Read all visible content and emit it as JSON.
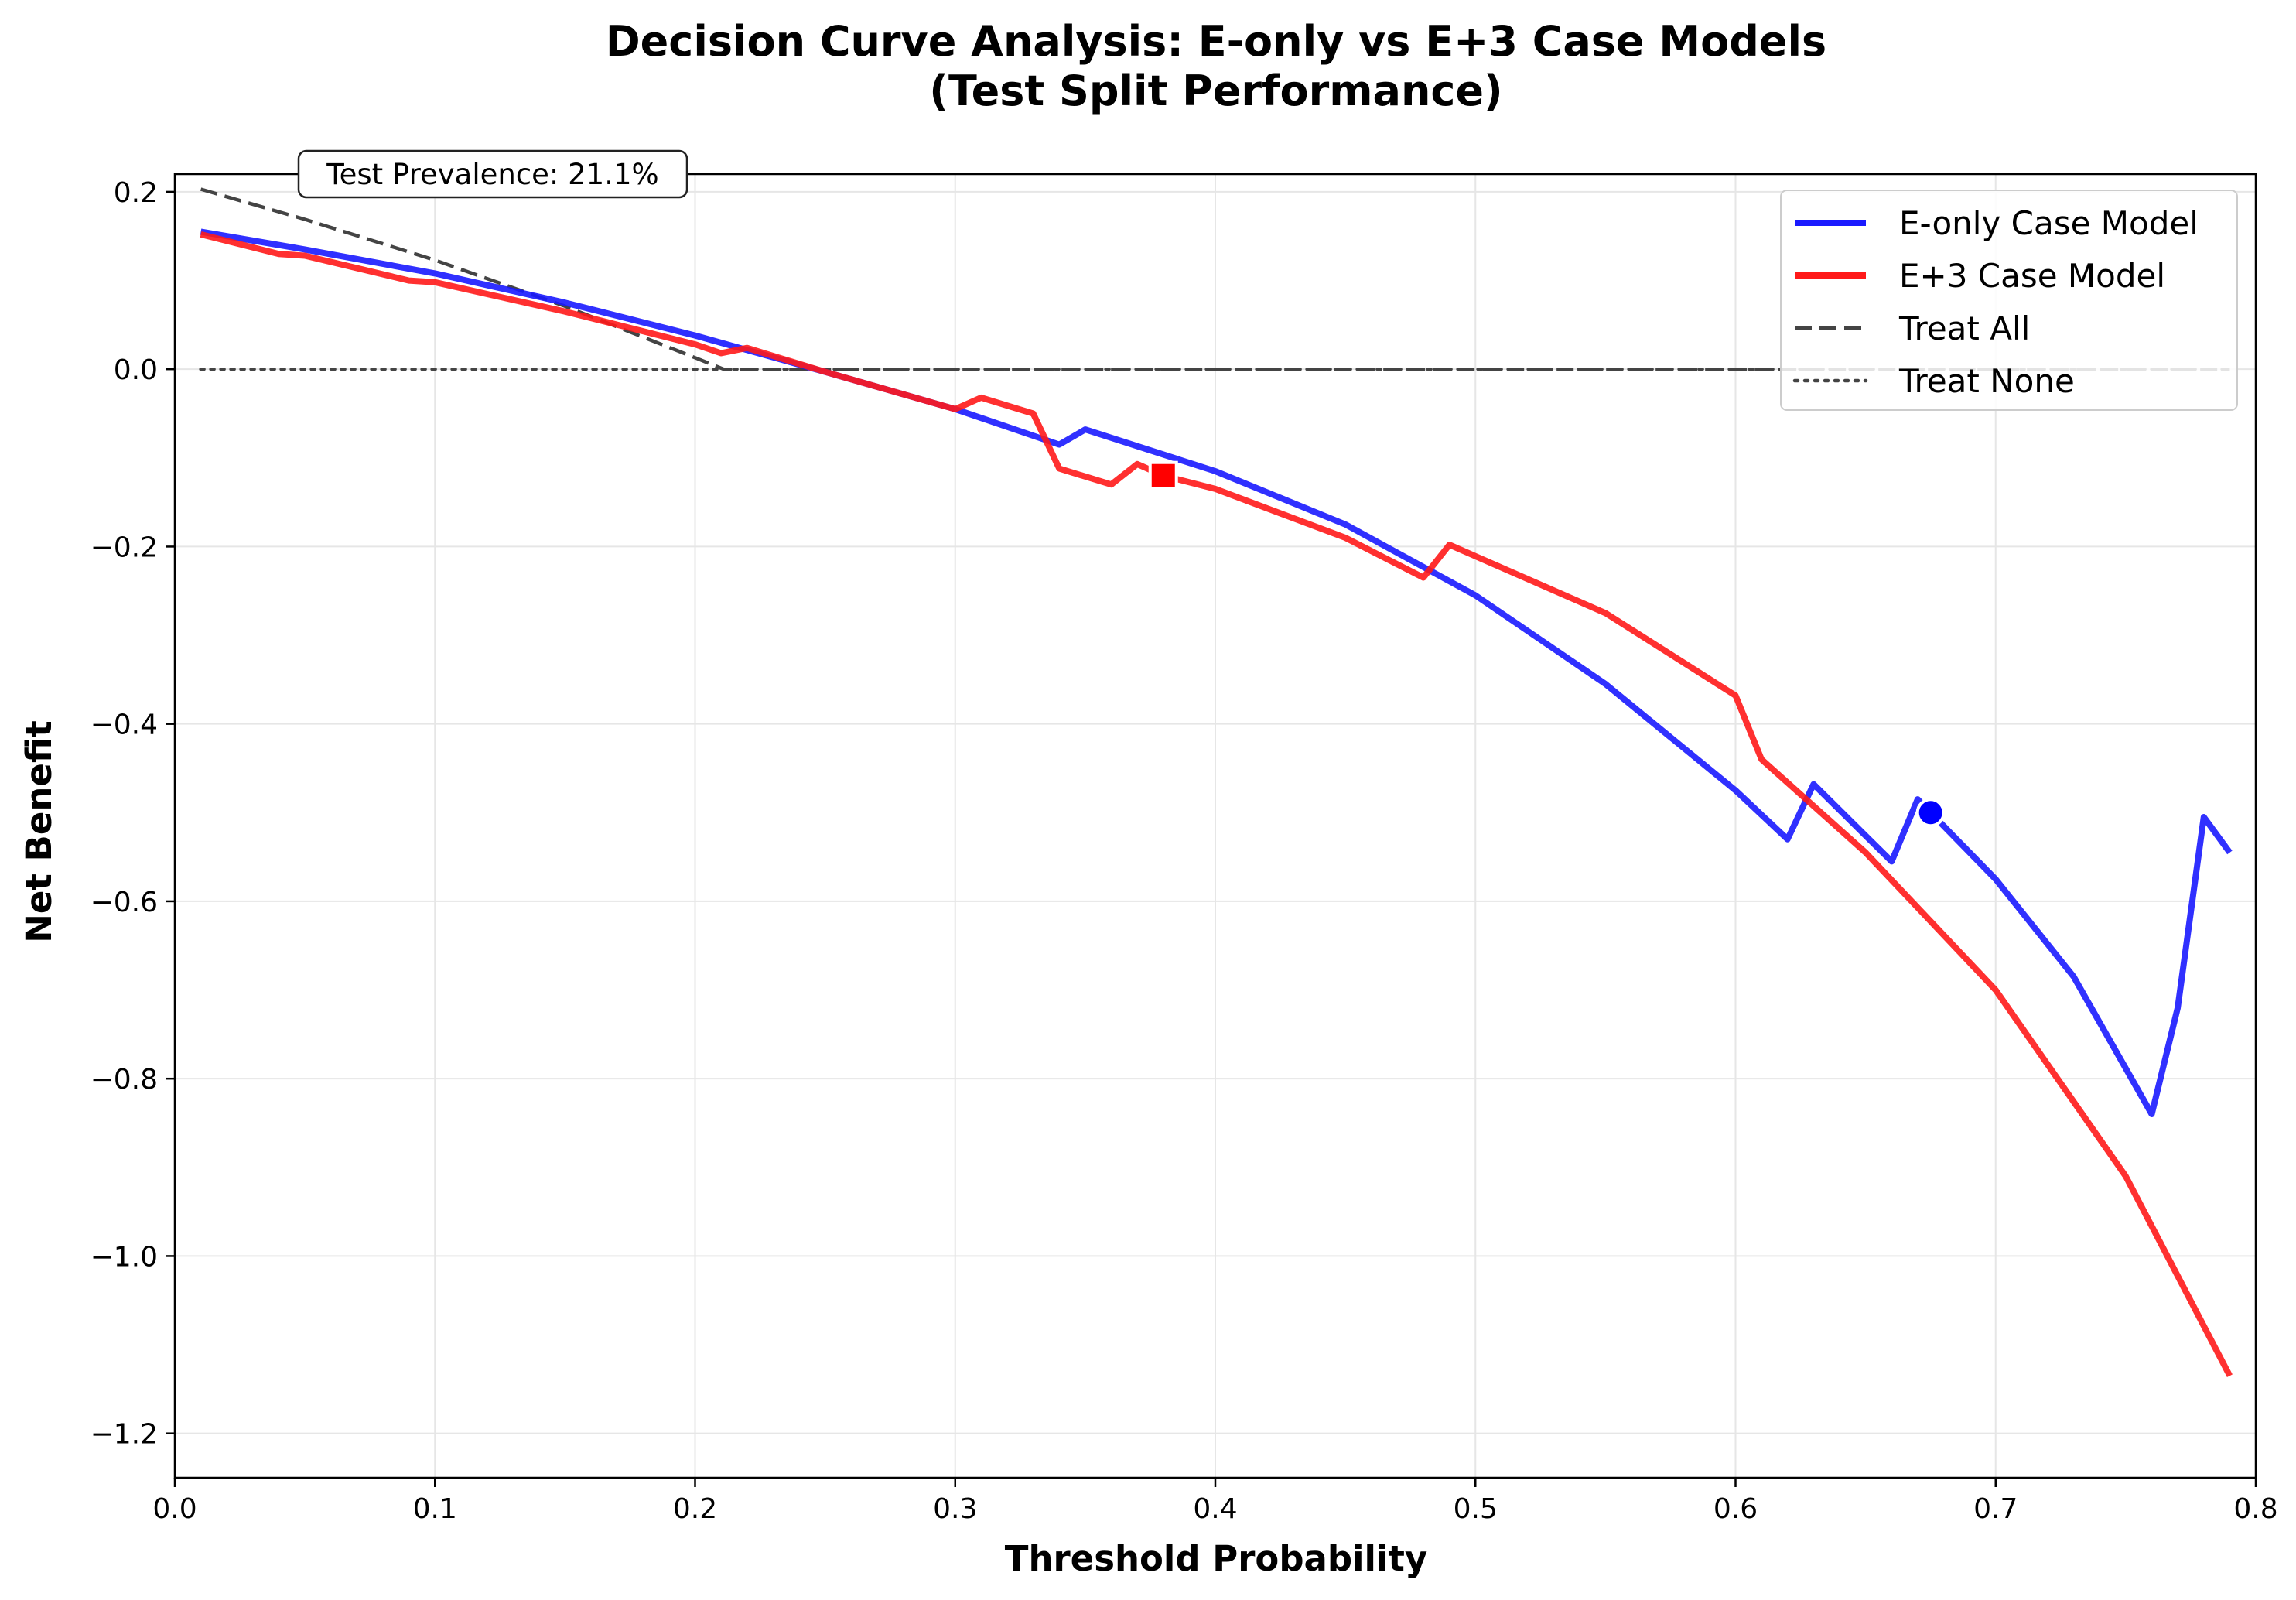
{
  "chart_data": {
    "type": "line",
    "title": "Decision Curve Analysis: E-only vs E+3 Case Models",
    "subtitle": "(Test Split Performance)",
    "xlabel": "Threshold Probability",
    "ylabel": "Net Benefit",
    "xlim": [
      0.0,
      0.8
    ],
    "ylim": [
      -1.25,
      0.22
    ],
    "xticks": [
      0.0,
      0.1,
      0.2,
      0.3,
      0.4,
      0.5,
      0.6,
      0.7,
      0.8
    ],
    "xtick_labels": [
      "0.0",
      "0.1",
      "0.2",
      "0.3",
      "0.4",
      "0.5",
      "0.6",
      "0.7",
      "0.8"
    ],
    "yticks": [
      0.2,
      0.0,
      -0.2,
      -0.4,
      -0.6,
      -0.8,
      -1.0,
      -1.2
    ],
    "ytick_labels": [
      "0.2",
      "0.0",
      "−0.2",
      "−0.4",
      "−0.6",
      "−0.8",
      "−1.0",
      "−1.2"
    ],
    "grid": true,
    "legend_position": "top-right",
    "annotation": "Test Prevalence: 21.1%",
    "series": [
      {
        "name": "E-only Case Model",
        "color": "#1a1aff",
        "style": "solid",
        "x": [
          0.01,
          0.05,
          0.1,
          0.15,
          0.2,
          0.25,
          0.3,
          0.34,
          0.35,
          0.4,
          0.45,
          0.5,
          0.55,
          0.6,
          0.62,
          0.63,
          0.66,
          0.67,
          0.675,
          0.7,
          0.73,
          0.76,
          0.77,
          0.78,
          0.79
        ],
        "y": [
          0.155,
          0.135,
          0.108,
          0.075,
          0.038,
          -0.003,
          -0.045,
          -0.085,
          -0.068,
          -0.115,
          -0.175,
          -0.255,
          -0.355,
          -0.475,
          -0.53,
          -0.468,
          -0.555,
          -0.485,
          -0.5,
          -0.575,
          -0.685,
          -0.84,
          -0.72,
          -0.505,
          -0.545
        ]
      },
      {
        "name": "E+3 Case Model",
        "color": "#ff1a1a",
        "style": "solid",
        "x": [
          0.01,
          0.04,
          0.05,
          0.09,
          0.1,
          0.15,
          0.2,
          0.21,
          0.22,
          0.25,
          0.3,
          0.31,
          0.33,
          0.34,
          0.36,
          0.37,
          0.38,
          0.4,
          0.45,
          0.48,
          0.49,
          0.55,
          0.6,
          0.61,
          0.65,
          0.7,
          0.75,
          0.79
        ],
        "y": [
          0.152,
          0.13,
          0.128,
          0.1,
          0.098,
          0.065,
          0.028,
          0.018,
          0.024,
          -0.003,
          -0.045,
          -0.032,
          -0.05,
          -0.112,
          -0.13,
          -0.107,
          -0.12,
          -0.135,
          -0.19,
          -0.235,
          -0.198,
          -0.275,
          -0.368,
          -0.44,
          -0.545,
          -0.7,
          -0.91,
          -1.135
        ]
      },
      {
        "name": "Treat All",
        "color": "#444444",
        "style": "dashed",
        "x": [
          0.01,
          0.05,
          0.1,
          0.15,
          0.2,
          0.211,
          0.3,
          0.4,
          0.5,
          0.6,
          0.7,
          0.79
        ],
        "y": [
          0.203,
          0.169,
          0.123,
          0.071,
          0.013,
          0.0,
          0.0,
          0.0,
          0.0,
          0.0,
          0.0,
          0.0
        ]
      },
      {
        "name": "Treat None",
        "color": "#444444",
        "style": "dotted",
        "x": [
          0.01,
          0.79
        ],
        "y": [
          0.0,
          0.0
        ]
      }
    ],
    "markers": [
      {
        "series": "E+3 Case Model",
        "shape": "square",
        "x": 0.38,
        "y": -0.12,
        "color": "#ff0000"
      },
      {
        "series": "E-only Case Model",
        "shape": "circle",
        "x": 0.675,
        "y": -0.5,
        "color": "#0000ff"
      }
    ]
  }
}
